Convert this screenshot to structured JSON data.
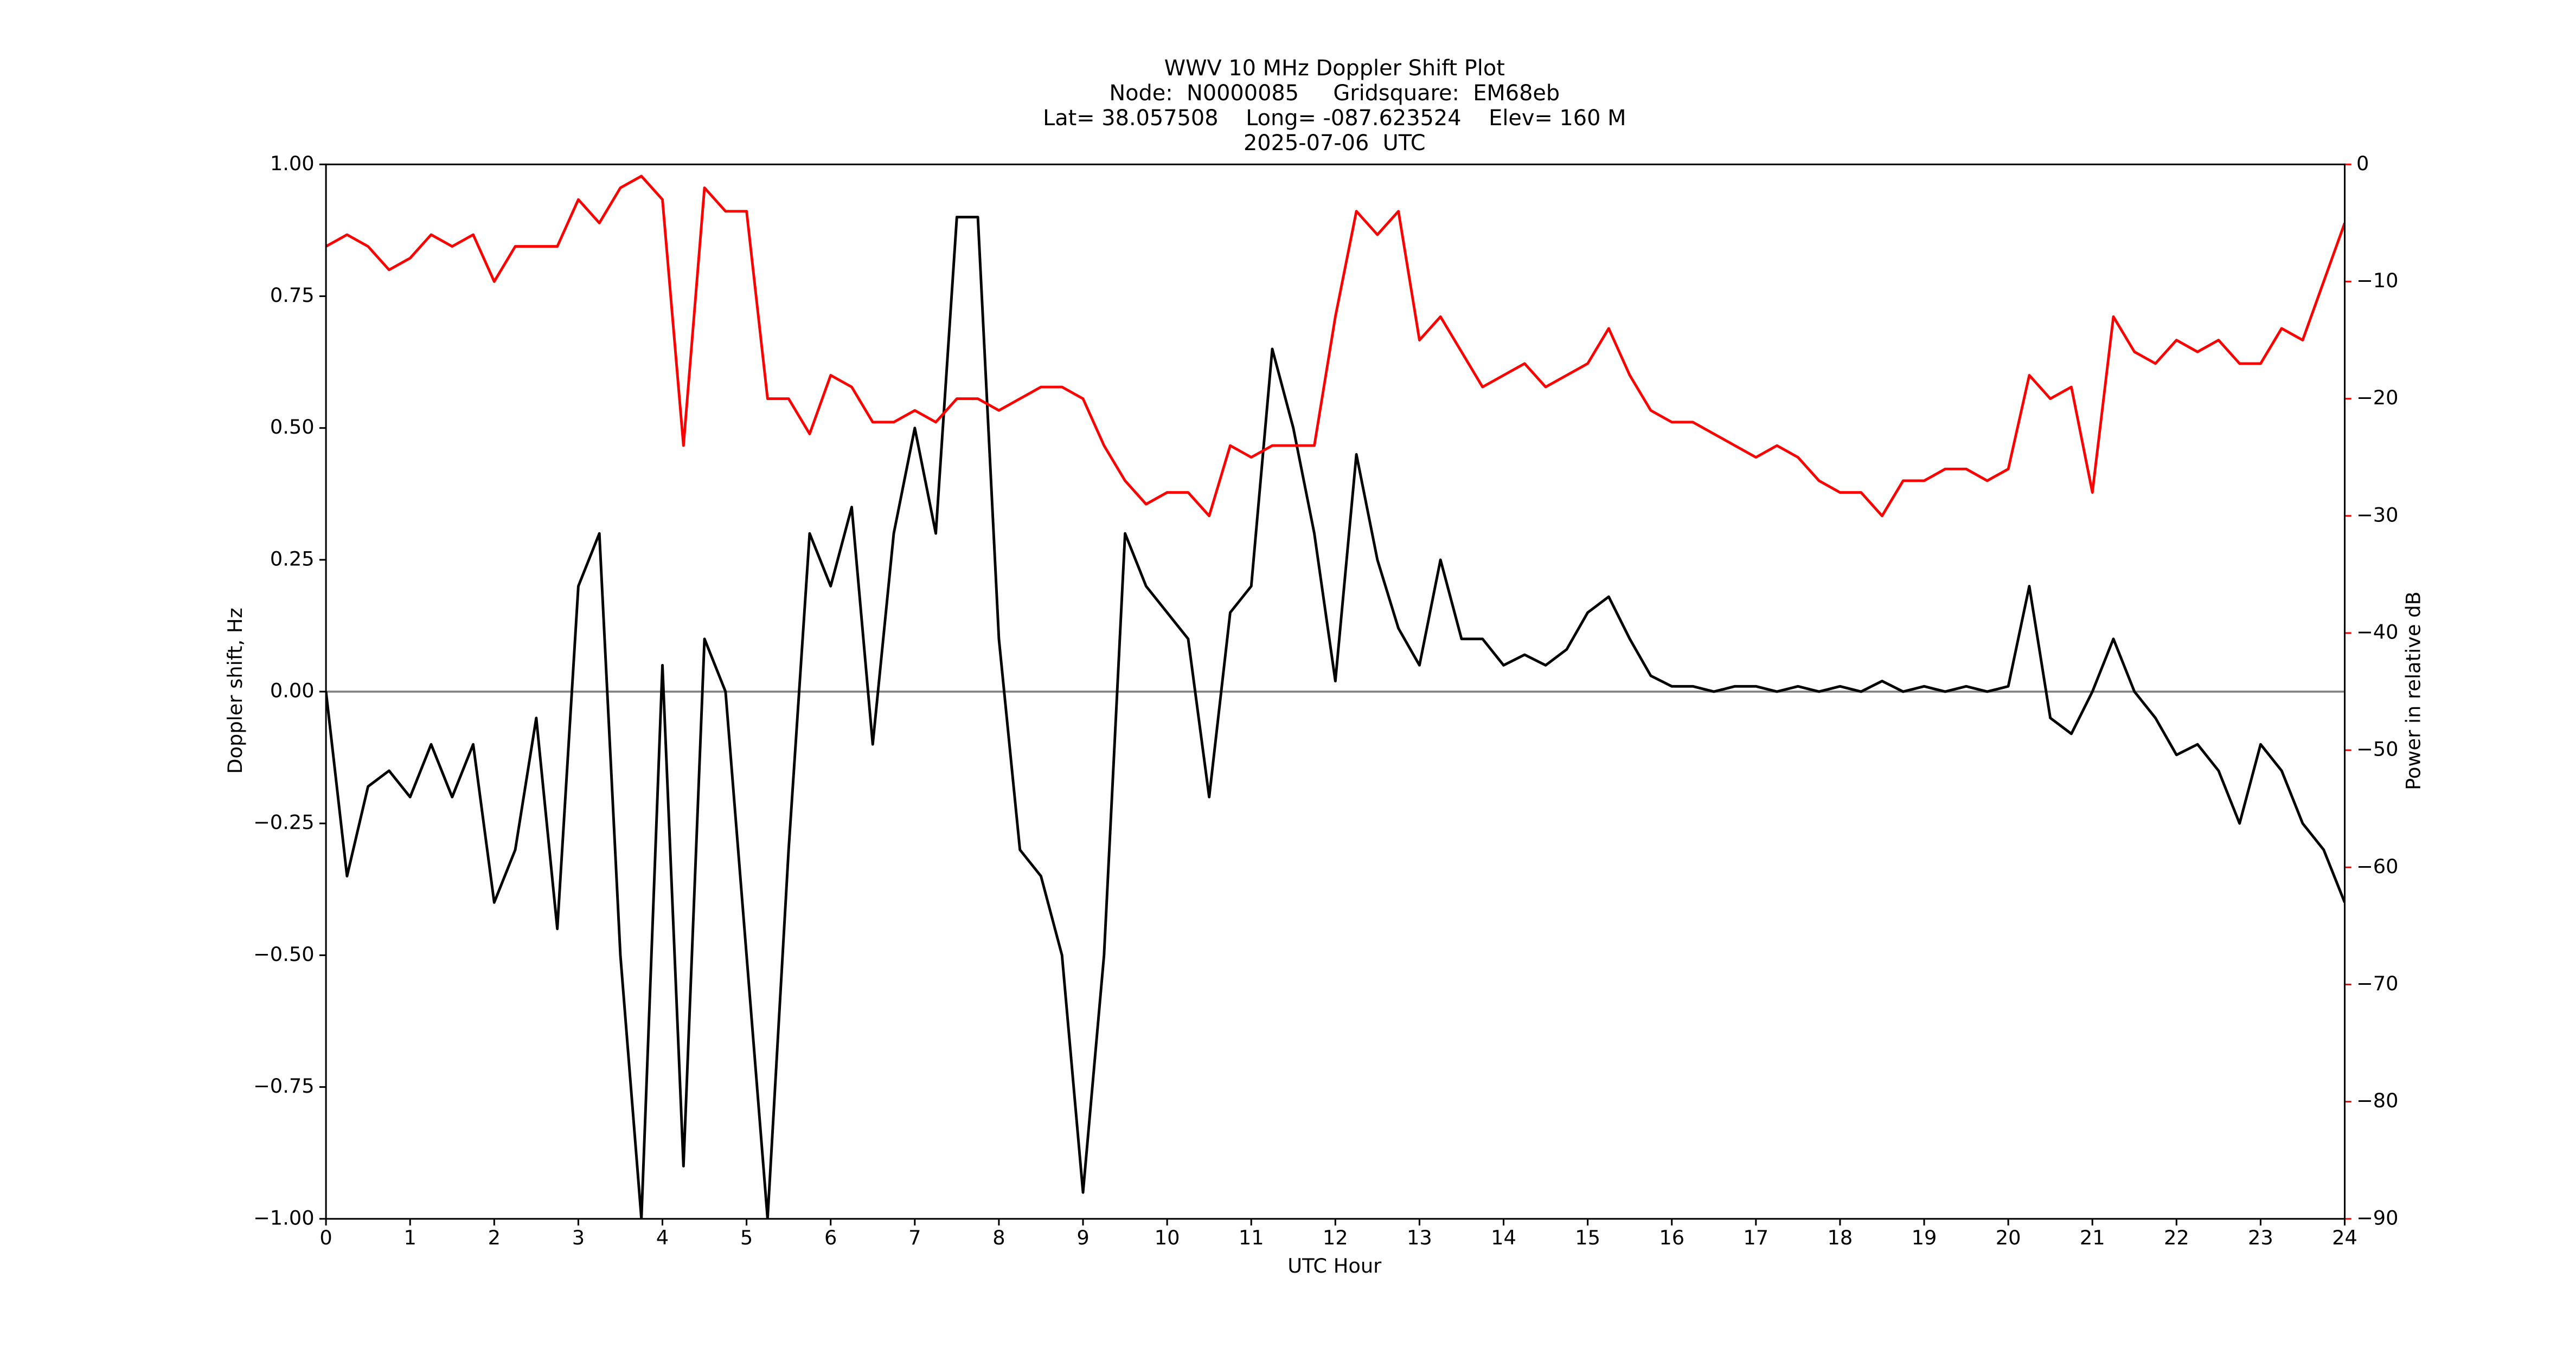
{
  "chart_data": {
    "type": "line",
    "title": [
      "WWV 10 MHz Doppler Shift Plot",
      "Node:  N0000085     Gridsquare:  EM68eb",
      "Lat= 38.057508    Long= -087.623524    Elev= 160 M",
      "2025-07-06  UTC"
    ],
    "x_label": "UTC Hour",
    "y_label": "Doppler shift, Hz",
    "y2_label": "Power in relative dB",
    "x": [
      0,
      0.25,
      0.5,
      0.75,
      1,
      1.25,
      1.5,
      1.75,
      2,
      2.25,
      2.5,
      2.75,
      3,
      3.25,
      3.5,
      3.75,
      4,
      4.25,
      4.5,
      4.75,
      5,
      5.25,
      5.5,
      5.75,
      6,
      6.25,
      6.5,
      6.75,
      7,
      7.25,
      7.5,
      7.75,
      8,
      8.25,
      8.5,
      8.75,
      9,
      9.25,
      9.5,
      9.75,
      10,
      10.25,
      10.5,
      10.75,
      11,
      11.25,
      11.5,
      11.75,
      12,
      12.25,
      12.5,
      12.75,
      13,
      13.25,
      13.5,
      13.75,
      14,
      14.25,
      14.5,
      14.75,
      15,
      15.25,
      15.5,
      15.75,
      16,
      16.25,
      16.5,
      16.75,
      17,
      17.25,
      17.5,
      17.75,
      18,
      18.25,
      18.5,
      18.75,
      19,
      19.25,
      19.5,
      19.75,
      20,
      20.25,
      20.5,
      20.75,
      21,
      21.25,
      21.5,
      21.75,
      22,
      22.25,
      22.5,
      22.75,
      23,
      23.25,
      23.5,
      23.75,
      24
    ],
    "series": [
      {
        "color": "#000000",
        "axis": "y",
        "values": [
          0,
          -0.35,
          -0.18,
          -0.15,
          -0.2,
          -0.1,
          -0.2,
          -0.1,
          -0.4,
          -0.3,
          -0.05,
          -0.45,
          0.2,
          0.3,
          -0.5,
          -1.0,
          0.05,
          -0.9,
          0.1,
          0.0,
          -0.5,
          -1.0,
          -0.3,
          0.3,
          0.2,
          0.35,
          -0.1,
          0.3,
          0.5,
          0.3,
          0.9,
          0.9,
          0.1,
          -0.3,
          -0.35,
          -0.5,
          -0.95,
          -0.5,
          0.3,
          0.2,
          0.15,
          0.1,
          -0.2,
          0.15,
          0.2,
          0.65,
          0.5,
          0.3,
          0.02,
          0.45,
          0.25,
          0.12,
          0.05,
          0.25,
          0.1,
          0.1,
          0.05,
          0.07,
          0.05,
          0.08,
          0.15,
          0.18,
          0.1,
          0.03,
          0.01,
          0.01,
          0.0,
          0.01,
          0.01,
          0.0,
          0.01,
          0.0,
          0.01,
          0.0,
          0.02,
          0.0,
          0.01,
          0.0,
          0.01,
          0.0,
          0.01,
          0.2,
          -0.05,
          -0.08,
          0.0,
          0.1,
          0.0,
          -0.05,
          -0.12,
          -0.1,
          -0.15,
          -0.25,
          -0.1,
          -0.15,
          -0.25,
          -0.3,
          -0.4
        ]
      },
      {
        "color": "#ff0000",
        "axis": "y2",
        "values": [
          -7,
          -6,
          -7,
          -9,
          -8,
          -6,
          -7,
          -6,
          -10,
          -7,
          -7,
          -7,
          -3,
          -5,
          -2,
          -1,
          -3,
          -24,
          -2,
          -4,
          -4,
          -20,
          -20,
          -23,
          -18,
          -19,
          -22,
          -22,
          -21,
          -22,
          -20,
          -20,
          -21,
          -20,
          -19,
          -19,
          -20,
          -24,
          -27,
          -29,
          -28,
          -28,
          -30,
          -24,
          -25,
          -24,
          -24,
          -24,
          -13,
          -4,
          -6,
          -4,
          -15,
          -13,
          -16,
          -19,
          -18,
          -17,
          -19,
          -18,
          -17,
          -14,
          -18,
          -21,
          -22,
          -22,
          -23,
          -24,
          -25,
          -24,
          -25,
          -27,
          -28,
          -28,
          -30,
          -27,
          -27,
          -26,
          -26,
          -27,
          -26,
          -18,
          -20,
          -19,
          -28,
          -13,
          -16,
          -17,
          -15,
          -16,
          -15,
          -17,
          -17,
          -14,
          -15,
          -10,
          -5
        ]
      }
    ],
    "xlim": [
      0,
      24
    ],
    "xticks": [
      0,
      1,
      2,
      3,
      4,
      5,
      6,
      7,
      8,
      9,
      10,
      11,
      12,
      13,
      14,
      15,
      16,
      17,
      18,
      19,
      20,
      21,
      22,
      23,
      24
    ],
    "ylim": [
      -1,
      1
    ],
    "yticks": [
      {
        "value": -1,
        "label": "−1.00"
      },
      {
        "value": -0.75,
        "label": "−0.75"
      },
      {
        "value": -0.5,
        "label": "−0.50"
      },
      {
        "value": -0.25,
        "label": "−0.25"
      },
      {
        "value": 0,
        "label": "0.00"
      },
      {
        "value": 0.25,
        "label": "0.25"
      },
      {
        "value": 0.5,
        "label": "0.50"
      },
      {
        "value": 0.75,
        "label": "0.75"
      },
      {
        "value": 1,
        "label": "1.00"
      }
    ],
    "y2lim": [
      -90,
      0
    ],
    "y2ticks": [
      {
        "value": -90,
        "label": "−90"
      },
      {
        "value": -80,
        "label": "−80"
      },
      {
        "value": -70,
        "label": "−70"
      },
      {
        "value": -60,
        "label": "−60"
      },
      {
        "value": -50,
        "label": "−50"
      },
      {
        "value": -40,
        "label": "−40"
      },
      {
        "value": -30,
        "label": "−30"
      },
      {
        "value": -20,
        "label": "−20"
      },
      {
        "value": -10,
        "label": "−10"
      },
      0
    ],
    "y2_color": "#ff0000",
    "hline": 0,
    "hline_color": "#808080"
  }
}
